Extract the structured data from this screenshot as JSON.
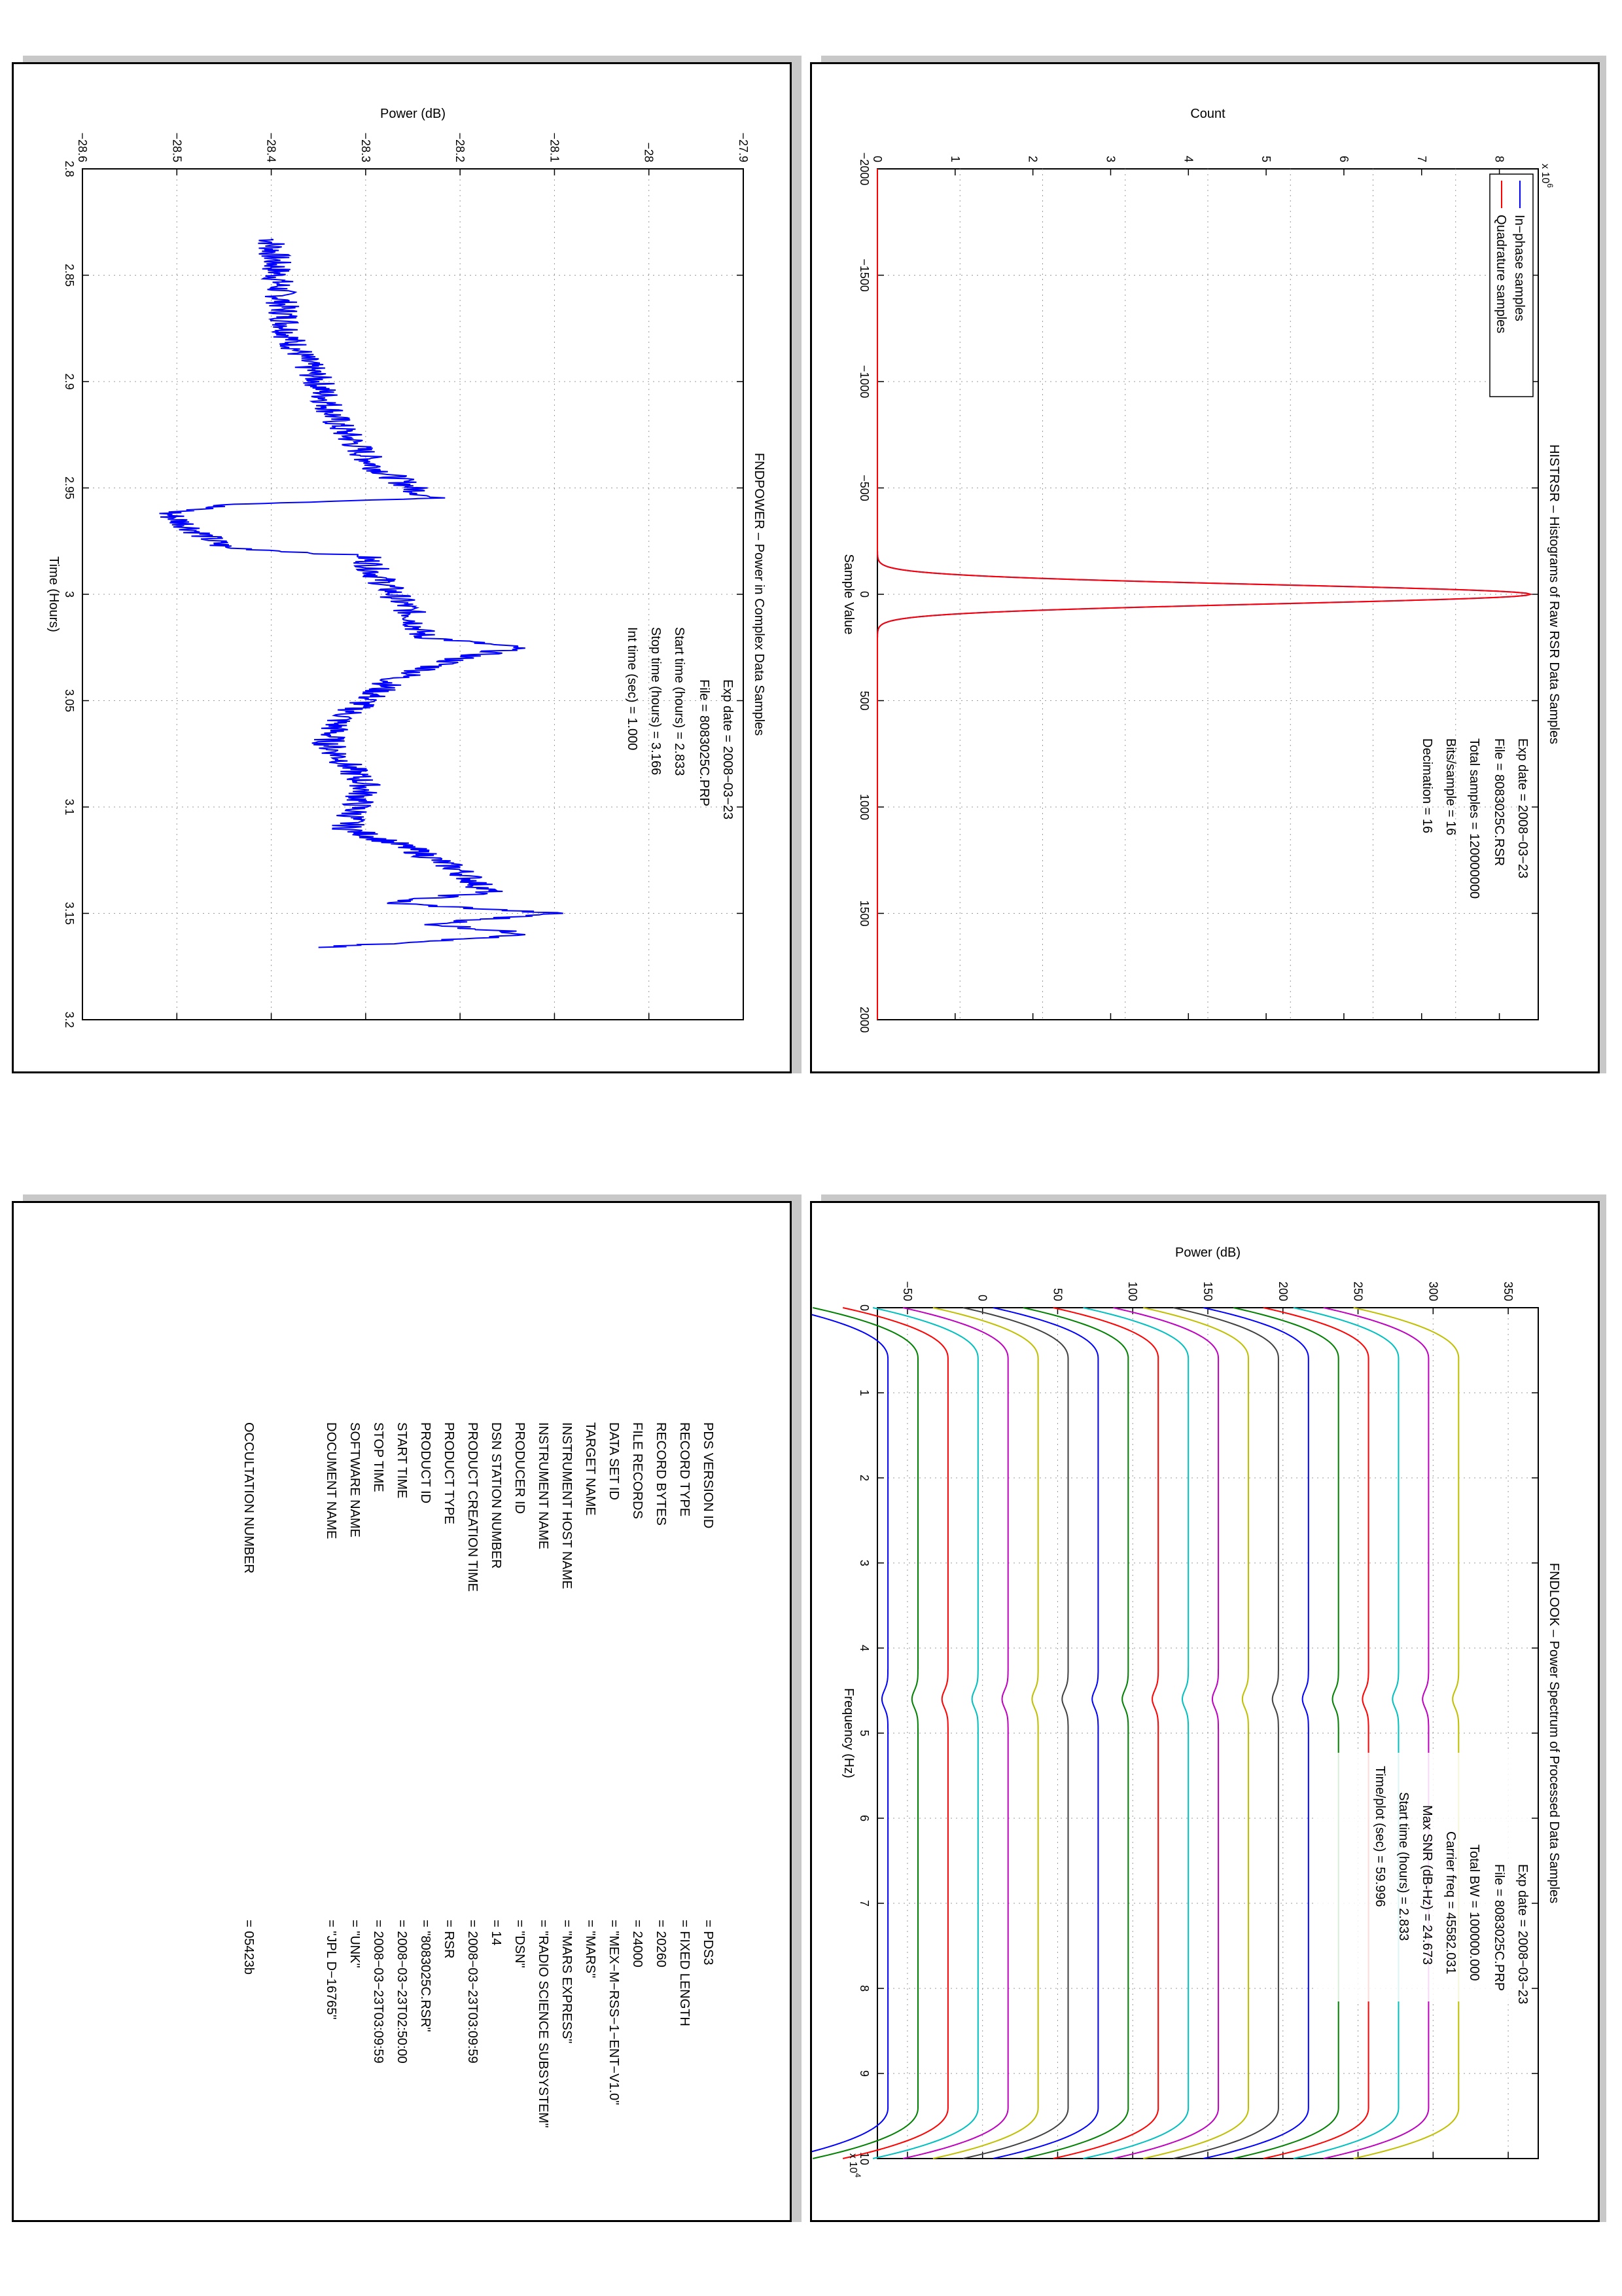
{
  "histrsr": {
    "title": "HISTRSR – Histograms of Raw RSR Data Samples",
    "info": [
      "Exp date = 2008−03−23",
      "File = 8083025C.RSR",
      "Total samples =   120000000",
      "Bits/sample   =         16",
      "Decimation    =         16"
    ],
    "xlabel": "Sample Value",
    "ylabel": "Count",
    "exponent": "x 10",
    "exponent_power": "6",
    "xticks": [
      "−2000",
      "−1500",
      "−1000",
      "−500",
      "0",
      "500",
      "1000",
      "1500",
      "2000"
    ],
    "yticks": [
      "0",
      "1",
      "2",
      "3",
      "4",
      "5",
      "6",
      "7",
      "8"
    ],
    "legend": [
      "In−phase samples",
      "Quadrature samples"
    ]
  },
  "fndpower": {
    "title": "FNDPOWER – Power in Complex Data Samples",
    "info": [
      "Exp date = 2008−03−23",
      "File = 8083025C.PRP",
      "Start time (hours) =   2.833",
      "Stop time (hours) =   3.166",
      "Int time (sec) =      1.000"
    ],
    "xlabel": "Time (Hours)",
    "ylabel": "Power (dB)",
    "xticks": [
      "2.8",
      "2.85",
      "2.9",
      "2.95",
      "3",
      "3.05",
      "3.1",
      "3.15",
      "3.2"
    ],
    "yticks": [
      "−28.6",
      "−28.5",
      "−28.4",
      "−28.3",
      "−28.2",
      "−28.1",
      "−28",
      "−27.9"
    ]
  },
  "fndlook": {
    "title": "FNDLOOK – Power Spectrum of Processed Data Samples",
    "info": [
      "Exp date = 2008−03−23",
      "File = 8083025C.PRP",
      "Total BW =     100000.000",
      "Carrier freq =   45582.031",
      "Max SNR (dB-Hz) =    24.673",
      "Start time (hours) =    2.833",
      "Time/plot (sec) =    59.996"
    ],
    "xlabel": "Frequency (Hz)",
    "ylabel": "Power (dB)",
    "exponent": "x 10",
    "exponent_power": "4",
    "xticks": [
      "0",
      "1",
      "2",
      "3",
      "4",
      "5",
      "6",
      "7",
      "8",
      "9",
      "10"
    ],
    "yticks": [
      "−50",
      "0",
      "50",
      "100",
      "150",
      "200",
      "250",
      "300",
      "350"
    ]
  },
  "label": {
    "rows": [
      [
        "PDS VERSION ID",
        "=  PDS3"
      ],
      [
        "RECORD TYPE",
        "=  FIXED LENGTH"
      ],
      [
        "RECORD BYTES",
        "=  20260"
      ],
      [
        "FILE RECORDS",
        "=  24000"
      ],
      [
        "DATA SET ID",
        "=  \"MEX−M−RSS−1−ENT−V1.0\""
      ],
      [
        "TARGET NAME",
        "=  \"MARS\""
      ],
      [
        "INSTRUMENT HOST NAME",
        "=  \"MARS EXPRESS\""
      ],
      [
        "INSTRUMENT NAME",
        "=  \"RADIO SCIENCE SUBSYSTEM\""
      ],
      [
        "PRODUCER ID",
        "=  \"DSN\""
      ],
      [
        "DSN STATION NUMBER",
        "=  14"
      ],
      [
        "PRODUCT CREATION TIME",
        "=  2008−03−23T03:09:59"
      ],
      [
        "PRODUCT TYPE",
        "=  RSR"
      ],
      [
        "PRODUCT ID",
        "=  \"8083025C.RSR\""
      ],
      [
        "START TIME",
        "=  2008−03−23T02:50:00"
      ],
      [
        "STOP TIME",
        "=  2008−03−23T03:09:59"
      ],
      [
        "SOFTWARE NAME",
        "=  \"UNK\""
      ],
      [
        "DOCUMENT NAME",
        "=  \"JPL D−16765\""
      ]
    ],
    "occultation_label": "OCCULTATION NUMBER",
    "occultation_value": "=  05423b"
  },
  "chart_data": [
    {
      "type": "line",
      "title": "HISTRSR – Histograms of Raw RSR Data Samples",
      "xlabel": "Sample Value",
      "ylabel": "Count",
      "y_scale_factor": "x 10^6",
      "xlim": [
        -2000,
        2000
      ],
      "ylim": [
        0,
        8.5
      ],
      "grid": true,
      "legend_position": "top-left",
      "series": [
        {
          "name": "In−phase samples",
          "color": "#0000ff",
          "shape": "gaussian",
          "peak": 8.4,
          "center": 0,
          "sigma": 45
        },
        {
          "name": "Quadrature samples",
          "color": "#ff0000",
          "shape": "gaussian",
          "peak": 8.4,
          "center": 0,
          "sigma": 45
        }
      ]
    },
    {
      "type": "line",
      "title": "FNDPOWER – Power in Complex Data Samples",
      "xlabel": "Time (Hours)",
      "ylabel": "Power (dB)",
      "xlim": [
        2.8,
        3.2
      ],
      "ylim": [
        -28.6,
        -27.9
      ],
      "grid": true,
      "series": [
        {
          "color": "#0000ff",
          "x": [
            2.833,
            2.86,
            2.88,
            2.9,
            2.92,
            2.94,
            2.95,
            2.955,
            2.958,
            2.962,
            2.97,
            2.978,
            2.982,
            2.99,
            3.0,
            3.01,
            3.02,
            3.025,
            3.03,
            3.04,
            3.05,
            3.06,
            3.07,
            3.08,
            3.09,
            3.1,
            3.11,
            3.12,
            3.13,
            3.14,
            3.145,
            3.15,
            3.155,
            3.16,
            3.166
          ],
          "y": [
            -28.4,
            -28.39,
            -28.38,
            -28.35,
            -28.33,
            -28.29,
            -28.25,
            -28.23,
            -28.45,
            -28.51,
            -28.48,
            -28.45,
            -28.3,
            -28.29,
            -28.27,
            -28.25,
            -28.24,
            -28.14,
            -28.2,
            -28.27,
            -28.3,
            -28.33,
            -28.34,
            -28.32,
            -28.3,
            -28.31,
            -28.32,
            -28.25,
            -28.2,
            -28.17,
            -28.28,
            -28.1,
            -28.23,
            -28.12,
            -28.35
          ]
        }
      ]
    },
    {
      "type": "line",
      "title": "FNDLOOK – Power Spectrum of Processed Data Samples",
      "xlabel": "Frequency (Hz)",
      "ylabel": "Power (dB)",
      "x_scale_factor": "x 10^4",
      "xlim": [
        0,
        10
      ],
      "ylim": [
        -70,
        370
      ],
      "grid": true,
      "spectra_count": 20,
      "baseline_first": -63,
      "baseline_step": 20,
      "edge_drop_db": 70,
      "notch_frequency": 4.6,
      "colors": [
        "#0000ff",
        "#008000",
        "#ff0000",
        "#00bfbf",
        "#bf00bf",
        "#bfbf00",
        "#404040"
      ]
    }
  ]
}
